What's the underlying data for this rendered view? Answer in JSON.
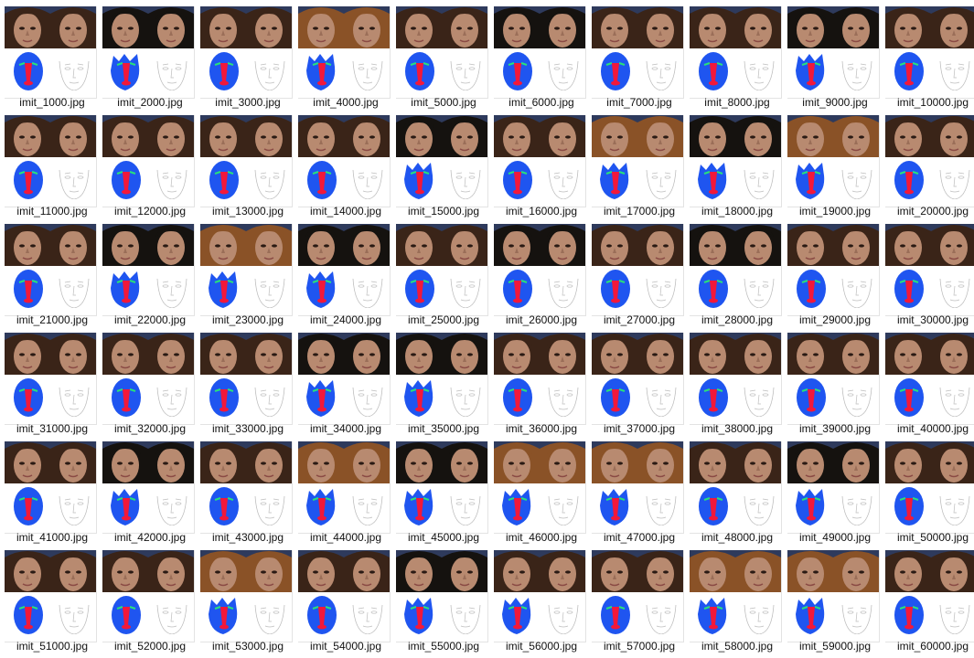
{
  "files": [
    {
      "name": "imit_1000.jpg",
      "hair": "dark",
      "mask": "round"
    },
    {
      "name": "imit_2000.jpg",
      "hair": "black",
      "mask": "spiky"
    },
    {
      "name": "imit_3000.jpg",
      "hair": "dark",
      "mask": "round"
    },
    {
      "name": "imit_4000.jpg",
      "hair": "auburn",
      "mask": "spiky"
    },
    {
      "name": "imit_5000.jpg",
      "hair": "dark",
      "mask": "round"
    },
    {
      "name": "imit_6000.jpg",
      "hair": "black",
      "mask": "round"
    },
    {
      "name": "imit_7000.jpg",
      "hair": "dark",
      "mask": "round"
    },
    {
      "name": "imit_8000.jpg",
      "hair": "dark",
      "mask": "round"
    },
    {
      "name": "imit_9000.jpg",
      "hair": "black",
      "mask": "spiky"
    },
    {
      "name": "imit_10000.jpg",
      "hair": "dark",
      "mask": "round"
    },
    {
      "name": "imit_11000.jpg",
      "hair": "dark",
      "mask": "round"
    },
    {
      "name": "imit_12000.jpg",
      "hair": "dark",
      "mask": "round"
    },
    {
      "name": "imit_13000.jpg",
      "hair": "dark",
      "mask": "round"
    },
    {
      "name": "imit_14000.jpg",
      "hair": "dark",
      "mask": "round"
    },
    {
      "name": "imit_15000.jpg",
      "hair": "black",
      "mask": "spiky"
    },
    {
      "name": "imit_16000.jpg",
      "hair": "dark",
      "mask": "round"
    },
    {
      "name": "imit_17000.jpg",
      "hair": "auburn",
      "mask": "spiky"
    },
    {
      "name": "imit_18000.jpg",
      "hair": "black",
      "mask": "spiky"
    },
    {
      "name": "imit_19000.jpg",
      "hair": "auburn",
      "mask": "spiky"
    },
    {
      "name": "imit_20000.jpg",
      "hair": "dark",
      "mask": "round"
    },
    {
      "name": "imit_21000.jpg",
      "hair": "dark",
      "mask": "round"
    },
    {
      "name": "imit_22000.jpg",
      "hair": "black",
      "mask": "spiky"
    },
    {
      "name": "imit_23000.jpg",
      "hair": "auburn",
      "mask": "spiky"
    },
    {
      "name": "imit_24000.jpg",
      "hair": "black",
      "mask": "spiky"
    },
    {
      "name": "imit_25000.jpg",
      "hair": "dark",
      "mask": "round"
    },
    {
      "name": "imit_26000.jpg",
      "hair": "black",
      "mask": "round"
    },
    {
      "name": "imit_27000.jpg",
      "hair": "dark",
      "mask": "round"
    },
    {
      "name": "imit_28000.jpg",
      "hair": "black",
      "mask": "round"
    },
    {
      "name": "imit_29000.jpg",
      "hair": "dark",
      "mask": "round"
    },
    {
      "name": "imit_30000.jpg",
      "hair": "dark",
      "mask": "round"
    },
    {
      "name": "imit_31000.jpg",
      "hair": "dark",
      "mask": "round"
    },
    {
      "name": "imit_32000.jpg",
      "hair": "dark",
      "mask": "round"
    },
    {
      "name": "imit_33000.jpg",
      "hair": "dark",
      "mask": "round"
    },
    {
      "name": "imit_34000.jpg",
      "hair": "black",
      "mask": "spiky"
    },
    {
      "name": "imit_35000.jpg",
      "hair": "black",
      "mask": "spiky"
    },
    {
      "name": "imit_36000.jpg",
      "hair": "dark",
      "mask": "round"
    },
    {
      "name": "imit_37000.jpg",
      "hair": "dark",
      "mask": "round"
    },
    {
      "name": "imit_38000.jpg",
      "hair": "dark",
      "mask": "round"
    },
    {
      "name": "imit_39000.jpg",
      "hair": "dark",
      "mask": "round"
    },
    {
      "name": "imit_40000.jpg",
      "hair": "dark",
      "mask": "round"
    },
    {
      "name": "imit_41000.jpg",
      "hair": "dark",
      "mask": "round"
    },
    {
      "name": "imit_42000.jpg",
      "hair": "black",
      "mask": "spiky"
    },
    {
      "name": "imit_43000.jpg",
      "hair": "dark",
      "mask": "round"
    },
    {
      "name": "imit_44000.jpg",
      "hair": "auburn",
      "mask": "spiky"
    },
    {
      "name": "imit_45000.jpg",
      "hair": "black",
      "mask": "spiky"
    },
    {
      "name": "imit_46000.jpg",
      "hair": "auburn",
      "mask": "spiky"
    },
    {
      "name": "imit_47000.jpg",
      "hair": "auburn",
      "mask": "spiky"
    },
    {
      "name": "imit_48000.jpg",
      "hair": "dark",
      "mask": "round"
    },
    {
      "name": "imit_49000.jpg",
      "hair": "black",
      "mask": "spiky"
    },
    {
      "name": "imit_50000.jpg",
      "hair": "dark",
      "mask": "round"
    },
    {
      "name": "imit_51000.jpg",
      "hair": "dark",
      "mask": "round"
    },
    {
      "name": "imit_52000.jpg",
      "hair": "dark",
      "mask": "round"
    },
    {
      "name": "imit_53000.jpg",
      "hair": "auburn",
      "mask": "spiky"
    },
    {
      "name": "imit_54000.jpg",
      "hair": "dark",
      "mask": "round"
    },
    {
      "name": "imit_55000.jpg",
      "hair": "black",
      "mask": "spiky"
    },
    {
      "name": "imit_56000.jpg",
      "hair": "dark",
      "mask": "spiky"
    },
    {
      "name": "imit_57000.jpg",
      "hair": "dark",
      "mask": "round"
    },
    {
      "name": "imit_58000.jpg",
      "hair": "auburn",
      "mask": "spiky"
    },
    {
      "name": "imit_59000.jpg",
      "hair": "auburn",
      "mask": "spiky"
    },
    {
      "name": "imit_60000.jpg",
      "hair": "dark",
      "mask": "round"
    }
  ],
  "colors": {
    "mask_blue": "#1f55f0",
    "mask_red": "#f2183a",
    "mask_green": "#29e07a",
    "render_bg": "#2e3a5c",
    "hair_dark": "#3a2418",
    "hair_black": "#15120f",
    "hair_auburn": "#8a5227",
    "skin": "#b88a70",
    "sketch_line": "#bdbdbd",
    "label_text": "#111111"
  }
}
